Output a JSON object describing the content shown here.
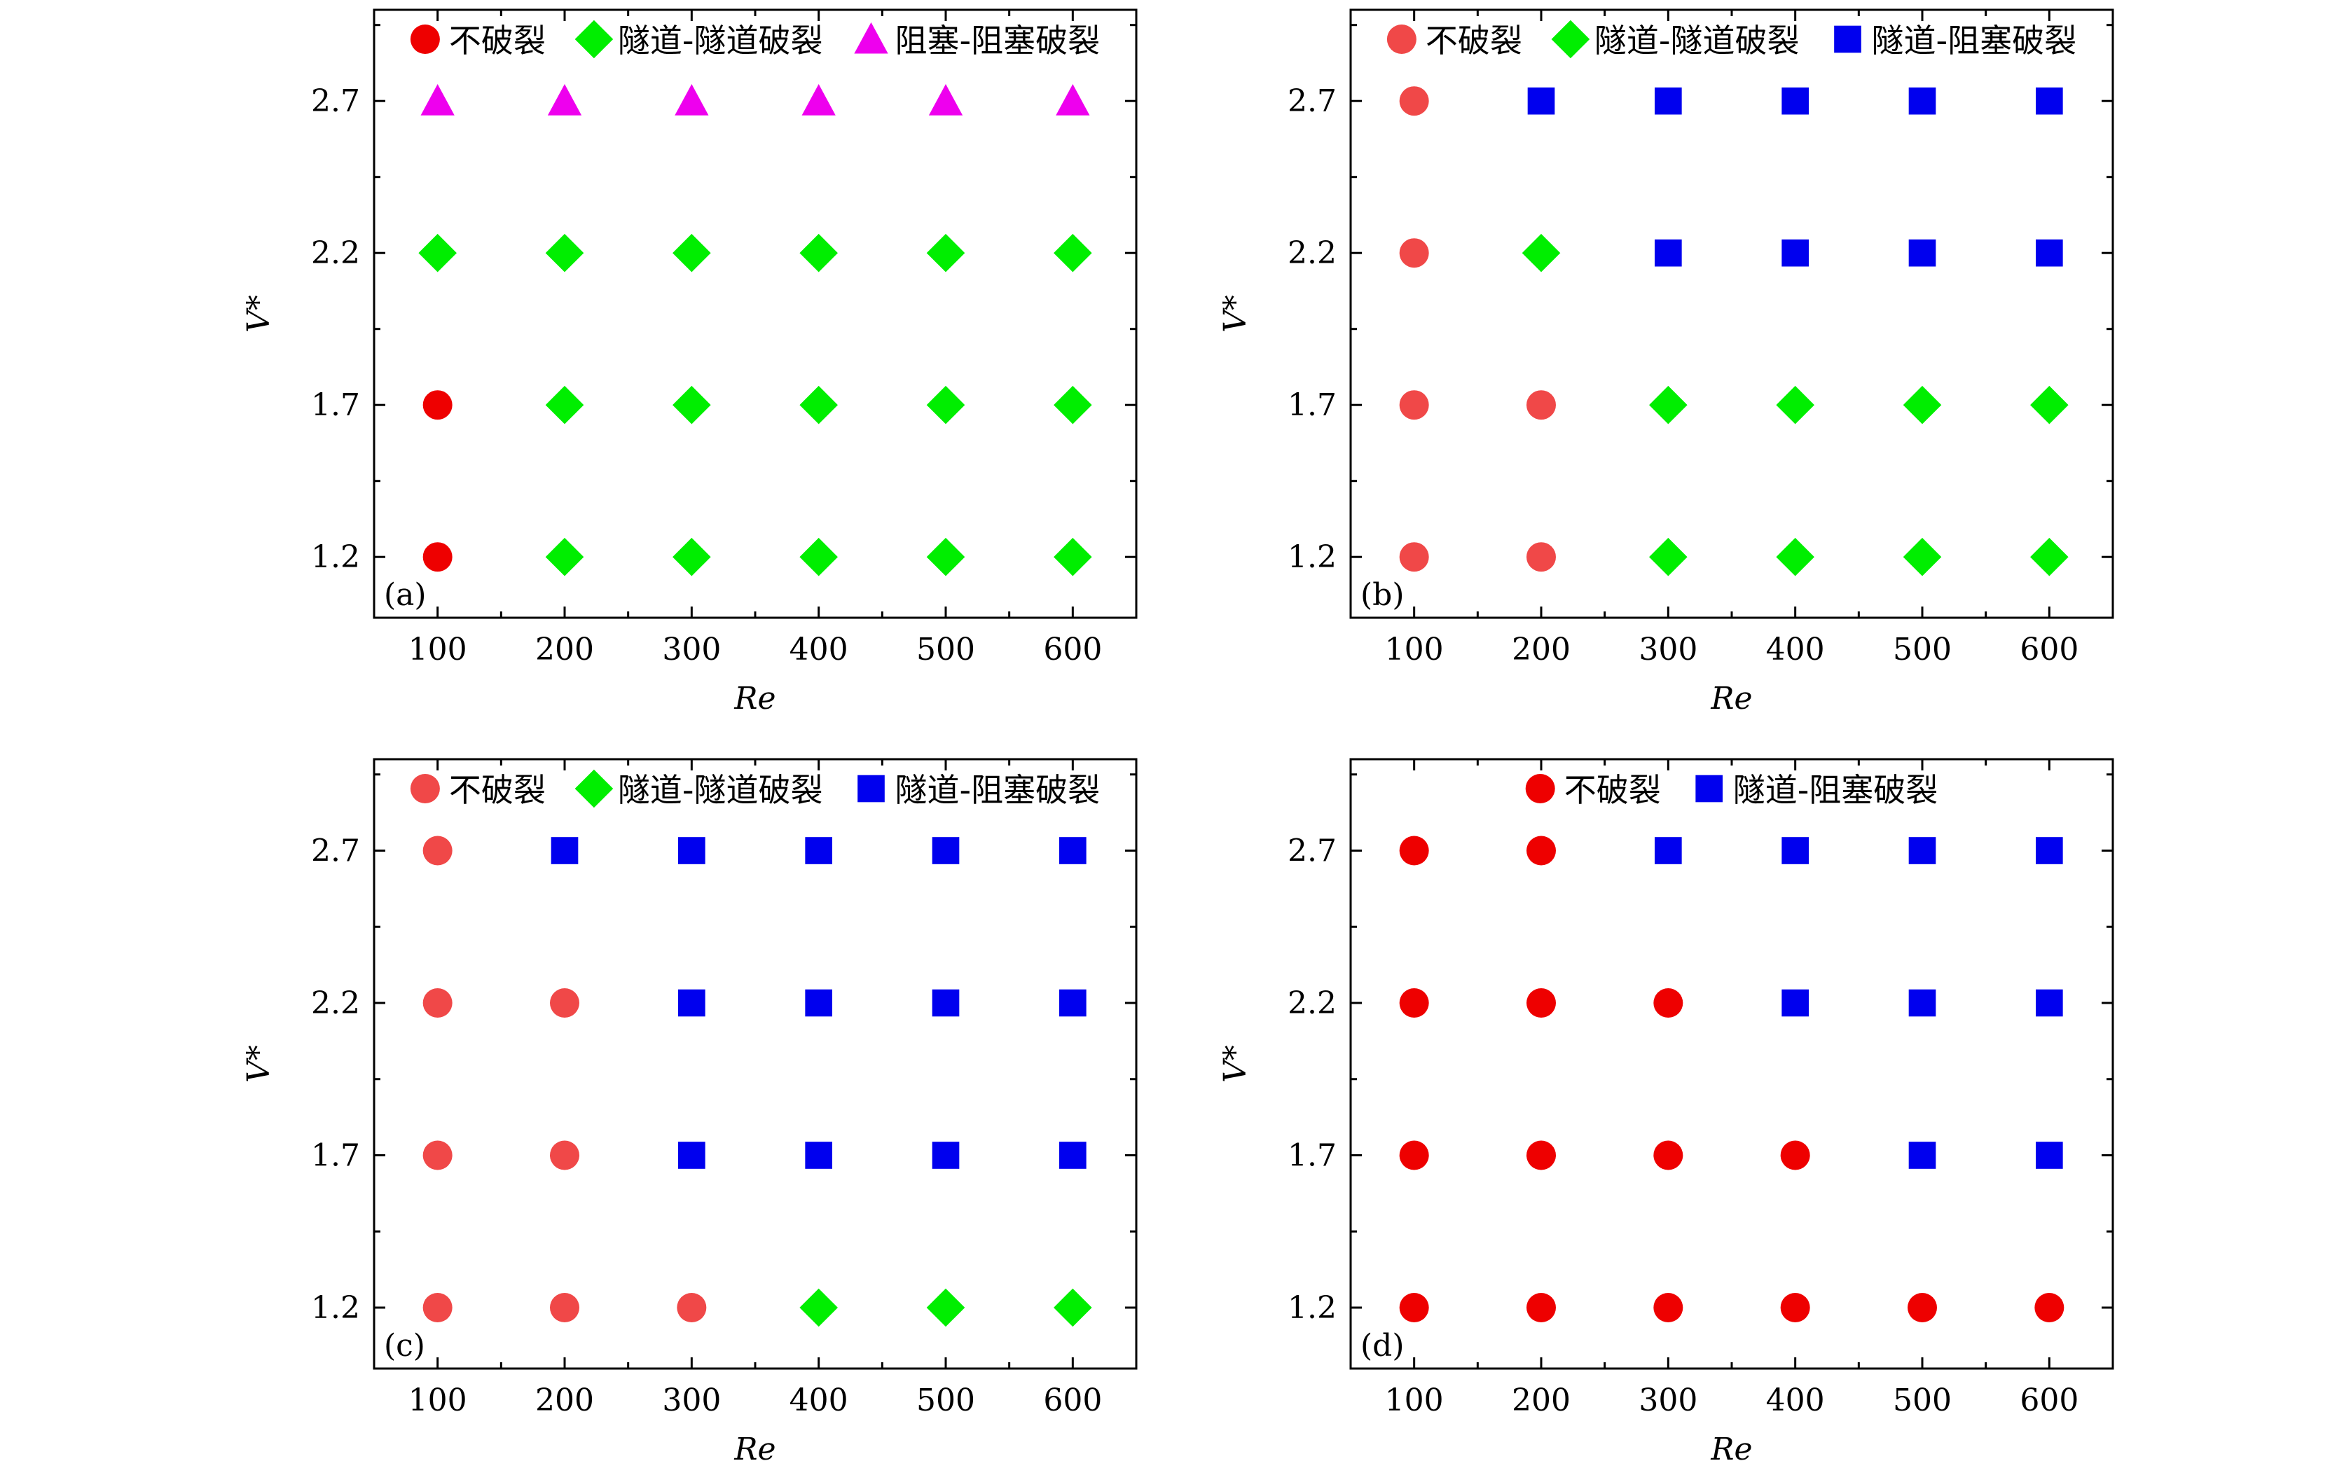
{
  "colors": {
    "no_breakup": "#ee0000",
    "no_breakup_light": "#f04848",
    "tunnel_tunnel": "#00ee00",
    "plug_plug": "#ee00ee",
    "tunnel_plug": "#0000ee"
  },
  "chart_data": [
    {
      "type": "scatter",
      "panel_label": "(a)",
      "xlabel": "Re",
      "ylabel": "V*",
      "x_ticks": [
        "100",
        "200",
        "300",
        "400",
        "500",
        "600"
      ],
      "y_ticks": [
        "1.2",
        "1.7",
        "2.2",
        "2.7"
      ],
      "xlim": [
        50,
        650
      ],
      "ylim": [
        1.0,
        3.0
      ],
      "legend": [
        {
          "label": "不破裂",
          "marker": "circle",
          "color": "#ee0000"
        },
        {
          "label": "隧道-隧道破裂",
          "marker": "diamond",
          "color": "#00ee00"
        },
        {
          "label": "阻塞-阻塞破裂",
          "marker": "triangle",
          "color": "#ee00ee"
        }
      ],
      "series": [
        {
          "name": "不破裂",
          "marker": "circle",
          "color": "#ee0000",
          "points": [
            [
              100,
              1.2
            ],
            [
              100,
              1.7
            ]
          ]
        },
        {
          "name": "隧道-隧道破裂",
          "marker": "diamond",
          "color": "#00ee00",
          "points": [
            [
              200,
              1.2
            ],
            [
              300,
              1.2
            ],
            [
              400,
              1.2
            ],
            [
              500,
              1.2
            ],
            [
              600,
              1.2
            ],
            [
              200,
              1.7
            ],
            [
              300,
              1.7
            ],
            [
              400,
              1.7
            ],
            [
              500,
              1.7
            ],
            [
              600,
              1.7
            ],
            [
              100,
              2.2
            ],
            [
              200,
              2.2
            ],
            [
              300,
              2.2
            ],
            [
              400,
              2.2
            ],
            [
              500,
              2.2
            ],
            [
              600,
              2.2
            ]
          ]
        },
        {
          "name": "阻塞-阻塞破裂",
          "marker": "triangle",
          "color": "#ee00ee",
          "points": [
            [
              100,
              2.7
            ],
            [
              200,
              2.7
            ],
            [
              300,
              2.7
            ],
            [
              400,
              2.7
            ],
            [
              500,
              2.7
            ],
            [
              600,
              2.7
            ]
          ]
        }
      ]
    },
    {
      "type": "scatter",
      "panel_label": "(b)",
      "xlabel": "Re",
      "ylabel": "V*",
      "x_ticks": [
        "100",
        "200",
        "300",
        "400",
        "500",
        "600"
      ],
      "y_ticks": [
        "1.2",
        "1.7",
        "2.2",
        "2.7"
      ],
      "xlim": [
        50,
        650
      ],
      "ylim": [
        1.0,
        3.0
      ],
      "legend": [
        {
          "label": "不破裂",
          "marker": "circle",
          "color": "#f04848"
        },
        {
          "label": "隧道-隧道破裂",
          "marker": "diamond",
          "color": "#00ee00"
        },
        {
          "label": "隧道-阻塞破裂",
          "marker": "square",
          "color": "#0000ee"
        }
      ],
      "series": [
        {
          "name": "不破裂",
          "marker": "circle",
          "color": "#f04848",
          "points": [
            [
              100,
              1.2
            ],
            [
              200,
              1.2
            ],
            [
              100,
              1.7
            ],
            [
              200,
              1.7
            ],
            [
              100,
              2.2
            ],
            [
              100,
              2.7
            ]
          ]
        },
        {
          "name": "隧道-隧道破裂",
          "marker": "diamond",
          "color": "#00ee00",
          "points": [
            [
              300,
              1.2
            ],
            [
              400,
              1.2
            ],
            [
              500,
              1.2
            ],
            [
              600,
              1.2
            ],
            [
              300,
              1.7
            ],
            [
              400,
              1.7
            ],
            [
              500,
              1.7
            ],
            [
              600,
              1.7
            ],
            [
              200,
              2.2
            ]
          ]
        },
        {
          "name": "隧道-阻塞破裂",
          "marker": "square",
          "color": "#0000ee",
          "points": [
            [
              300,
              2.2
            ],
            [
              400,
              2.2
            ],
            [
              500,
              2.2
            ],
            [
              600,
              2.2
            ],
            [
              200,
              2.7
            ],
            [
              300,
              2.7
            ],
            [
              400,
              2.7
            ],
            [
              500,
              2.7
            ],
            [
              600,
              2.7
            ]
          ]
        }
      ]
    },
    {
      "type": "scatter",
      "panel_label": "(c)",
      "xlabel": "Re",
      "ylabel": "V*",
      "x_ticks": [
        "100",
        "200",
        "300",
        "400",
        "500",
        "600"
      ],
      "y_ticks": [
        "1.2",
        "1.7",
        "2.2",
        "2.7"
      ],
      "xlim": [
        50,
        650
      ],
      "ylim": [
        1.0,
        3.0
      ],
      "legend": [
        {
          "label": "不破裂",
          "marker": "circle",
          "color": "#f04848"
        },
        {
          "label": "隧道-隧道破裂",
          "marker": "diamond",
          "color": "#00ee00"
        },
        {
          "label": "隧道-阻塞破裂",
          "marker": "square",
          "color": "#0000ee"
        }
      ],
      "series": [
        {
          "name": "不破裂",
          "marker": "circle",
          "color": "#f04848",
          "points": [
            [
              100,
              1.2
            ],
            [
              200,
              1.2
            ],
            [
              300,
              1.2
            ],
            [
              100,
              1.7
            ],
            [
              200,
              1.7
            ],
            [
              100,
              2.2
            ],
            [
              200,
              2.2
            ],
            [
              100,
              2.7
            ]
          ]
        },
        {
          "name": "隧道-隧道破裂",
          "marker": "diamond",
          "color": "#00ee00",
          "points": [
            [
              400,
              1.2
            ],
            [
              500,
              1.2
            ],
            [
              600,
              1.2
            ]
          ]
        },
        {
          "name": "隧道-阻塞破裂",
          "marker": "square",
          "color": "#0000ee",
          "points": [
            [
              300,
              1.7
            ],
            [
              400,
              1.7
            ],
            [
              500,
              1.7
            ],
            [
              600,
              1.7
            ],
            [
              300,
              2.2
            ],
            [
              400,
              2.2
            ],
            [
              500,
              2.2
            ],
            [
              600,
              2.2
            ],
            [
              200,
              2.7
            ],
            [
              300,
              2.7
            ],
            [
              400,
              2.7
            ],
            [
              500,
              2.7
            ],
            [
              600,
              2.7
            ]
          ]
        }
      ]
    },
    {
      "type": "scatter",
      "panel_label": "(d)",
      "xlabel": "Re",
      "ylabel": "V*",
      "x_ticks": [
        "100",
        "200",
        "300",
        "400",
        "500",
        "600"
      ],
      "y_ticks": [
        "1.2",
        "1.7",
        "2.2",
        "2.7"
      ],
      "xlim": [
        50,
        650
      ],
      "ylim": [
        1.0,
        3.0
      ],
      "legend": [
        {
          "label": "不破裂",
          "marker": "circle",
          "color": "#ee0000"
        },
        {
          "label": "隧道-阻塞破裂",
          "marker": "square",
          "color": "#0000ee"
        }
      ],
      "series": [
        {
          "name": "不破裂",
          "marker": "circle",
          "color": "#ee0000",
          "points": [
            [
              100,
              1.2
            ],
            [
              200,
              1.2
            ],
            [
              300,
              1.2
            ],
            [
              400,
              1.2
            ],
            [
              500,
              1.2
            ],
            [
              600,
              1.2
            ],
            [
              100,
              1.7
            ],
            [
              200,
              1.7
            ],
            [
              300,
              1.7
            ],
            [
              400,
              1.7
            ],
            [
              100,
              2.2
            ],
            [
              200,
              2.2
            ],
            [
              300,
              2.2
            ],
            [
              100,
              2.7
            ],
            [
              200,
              2.7
            ]
          ]
        },
        {
          "name": "隧道-阻塞破裂",
          "marker": "square",
          "color": "#0000ee",
          "points": [
            [
              500,
              1.7
            ],
            [
              600,
              1.7
            ],
            [
              400,
              2.2
            ],
            [
              500,
              2.2
            ],
            [
              600,
              2.2
            ],
            [
              300,
              2.7
            ],
            [
              400,
              2.7
            ],
            [
              500,
              2.7
            ],
            [
              600,
              2.7
            ]
          ]
        }
      ]
    }
  ]
}
